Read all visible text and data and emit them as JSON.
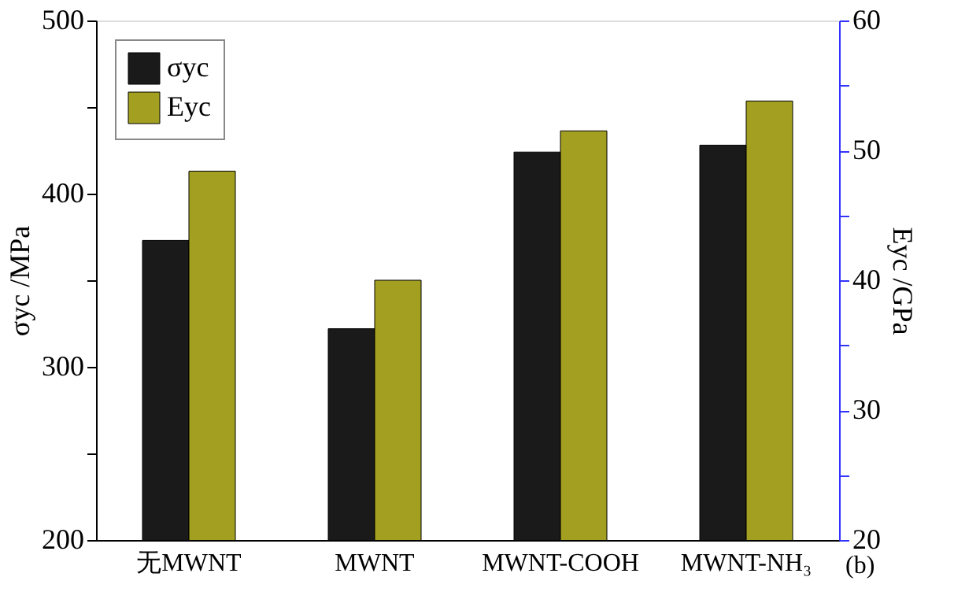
{
  "chart_data": {
    "type": "bar",
    "categories": [
      "无MWNT",
      "MWNT",
      "MWNT-COOH",
      "MWNT-NH₃"
    ],
    "series": [
      {
        "name": "σyc",
        "color": "#1a1a1a",
        "values": [
          373,
          322,
          424,
          428
        ]
      },
      {
        "name": "Eyc",
        "color": "#a3a021",
        "axis": "y2",
        "values": [
          48.4,
          40,
          51.5,
          53.8
        ]
      }
    ],
    "ylabel": "σyc /MPa",
    "y2label": "Eyc /GPa",
    "ylim": [
      200,
      500
    ],
    "yticks": [
      200,
      {
        "value": 250,
        "label": null
      },
      300,
      {
        "value": 350,
        "label": null
      },
      400,
      {
        "value": 450,
        "label": null
      },
      500
    ],
    "y2lim": [
      20,
      60
    ],
    "y2ticks": [
      20,
      {
        "value": 25,
        "label": null
      },
      30,
      {
        "value": 35,
        "label": null
      },
      40,
      {
        "value": 45,
        "label": null
      },
      50,
      {
        "value": 55,
        "label": null
      },
      60
    ],
    "legend": "top left",
    "grid": false,
    "annotations": [
      "(b)"
    ]
  }
}
